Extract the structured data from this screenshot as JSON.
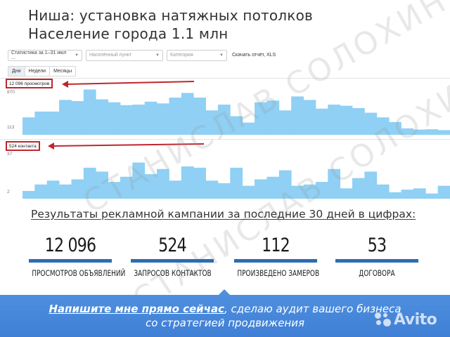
{
  "header": {
    "line1": "Ниша: установка натяжных потолков",
    "line2": "Население города 1.1 млн"
  },
  "filters": {
    "period": "Статистика за 1–31 июл ...",
    "city_placeholder": "Населённый пункт",
    "category_placeholder": "Категория",
    "download": "Скачать отчёт, XLS"
  },
  "tabs": [
    "Дни",
    "Недели",
    "Месяцы"
  ],
  "active_tab": "Дни",
  "colors": {
    "bar": "#8fd0f4",
    "highlight_box": "#c0262c",
    "stat_bar": "#2c6cb4",
    "cta_bg": "#4a8ada"
  },
  "views_panel": {
    "label": "12 096 просмотров",
    "ytick_top": "870",
    "ytick_bottom": "113"
  },
  "contacts_panel": {
    "label": "524 контакта",
    "ytick_top": "37",
    "ytick_bottom": "2"
  },
  "chart_data": [
    {
      "type": "bar",
      "title": "",
      "xlabel": "",
      "ylabel": "",
      "ylim": [
        0,
        870
      ],
      "series": [
        {
          "name": "просмотров",
          "values": [
            300,
            400,
            400,
            600,
            580,
            780,
            610,
            560,
            510,
            520,
            570,
            540,
            640,
            720,
            640,
            420,
            520,
            320,
            210,
            560,
            590,
            420,
            660,
            600,
            450,
            520,
            500,
            460,
            380,
            300,
            220,
            110,
            90,
            95,
            80
          ]
        }
      ]
    },
    {
      "type": "bar",
      "title": "",
      "xlabel": "",
      "ylabel": "",
      "ylim": [
        0,
        37
      ],
      "series": [
        {
          "name": "контакта",
          "values": [
            6,
            11,
            14,
            11,
            15,
            24,
            21,
            13,
            17,
            28,
            19,
            23,
            14,
            25,
            24,
            14,
            12,
            24,
            10,
            15,
            17,
            22,
            10,
            11,
            13,
            23,
            8,
            16,
            21,
            11,
            5,
            7,
            8,
            4,
            10
          ]
        }
      ]
    }
  ],
  "results": {
    "title": "Результаты рекламной кампании за последние 30 дней в цифрах:",
    "stats": [
      {
        "value": "12 096",
        "label": "ПРОСМОТРОВ ОБЪЯВЛЕНИЙ"
      },
      {
        "value": "524",
        "label": "ЗАПРОСОВ КОНТАКТОВ"
      },
      {
        "value": "112",
        "label": "ПРОИЗВЕДЕНО ЗАМЕРОВ"
      },
      {
        "value": "53",
        "label": "ДОГОВОРА"
      }
    ]
  },
  "watermark": "СТАНИСЛАВ СОЛОХИН",
  "cta": {
    "highlight": "Напишите мне прямо сейчас",
    "rest_line1": ", сделаю аудит вашего бизнеса",
    "line2": "со стратегией продвижения"
  },
  "brand": {
    "name": "Avito"
  }
}
